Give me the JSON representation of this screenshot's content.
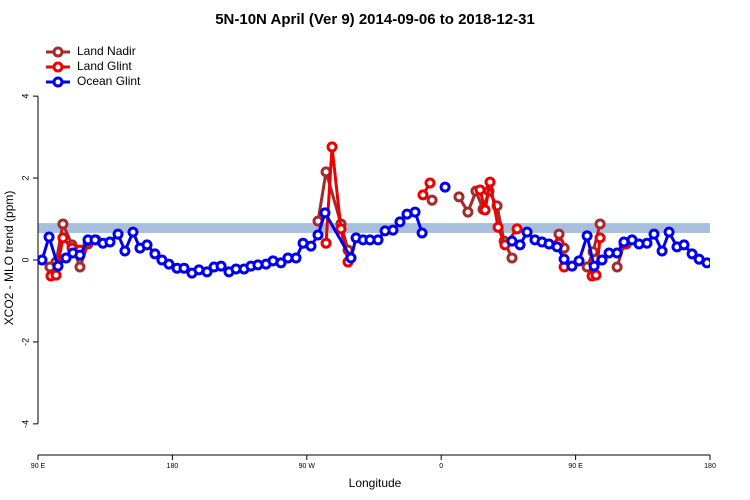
{
  "chart_data": {
    "type": "line",
    "title": "5N-10N April (Ver 9)   2014-09-06 to 2018-12-31",
    "xlabel": "Longitude",
    "ylabel": "XCO2 - MLO trend (ppm)",
    "xlim": [
      90,
      540
    ],
    "ylim": [
      -4.76,
      5.37
    ],
    "xticks": [
      {
        "value": 90,
        "label": "90 E"
      },
      180,
      {
        "value": 270,
        "label": "90 W"
      },
      {
        "value": 360,
        "label": "0"
      },
      {
        "value": 450,
        "label": "90 E"
      },
      {
        "value": 540,
        "label": "180"
      }
    ],
    "yticks": [
      -4,
      -2,
      0,
      2,
      4
    ],
    "reference_band": [
      0.66,
      0.9
    ],
    "reference_band_color": "#a7bfdc",
    "legend": "top-left",
    "series": [
      {
        "name": "Land Nadir",
        "color": "#a52a2a",
        "x": [
          98.0,
          102.1,
          106.7,
          112.8,
          118.1,
          123.5,
          null,
          277.5,
          282.9,
          292.9,
          297.6,
          null,
          353.9,
          null,
          371.9,
          377.9,
          383.3,
          388.0,
          392.0,
          397.4,
          402.1,
          407.4,
          null,
          438.9,
          442.3,
          null,
          457.7,
          461.7,
          466.4,
          null,
          477.8,
          482.4
        ],
        "values": [
          -0.17,
          -0.05,
          0.88,
          0.37,
          -0.17,
          0.39,
          null,
          0.95,
          2.15,
          0.88,
          0.24,
          null,
          1.46,
          null,
          1.54,
          1.17,
          1.68,
          1.24,
          1.68,
          1.32,
          0.46,
          0.05,
          null,
          0.63,
          0.29,
          null,
          -0.17,
          0.2,
          0.88,
          null,
          -0.17,
          0.39
        ]
      },
      {
        "name": "Land Glint",
        "color": "#ee0000",
        "x": [
          98.7,
          102.1,
          106.7,
          112.8,
          118.1,
          124.2,
          128.8,
          null,
          282.9,
          286.9,
          292.9,
          297.6,
          null,
          347.8,
          352.5,
          null,
          386.0,
          389.4,
          392.7,
          398.1,
          402.7,
          410.8,
          null,
          438.9,
          442.3,
          null,
          461.0,
          463.7,
          466.4,
          null,
          483.8
        ],
        "values": [
          -0.39,
          -0.37,
          0.54,
          0.29,
          0.24,
          0.46,
          0.49,
          null,
          0.41,
          2.76,
          0.76,
          -0.05,
          null,
          1.59,
          1.88,
          null,
          1.71,
          1.22,
          1.9,
          0.8,
          0.37,
          0.76,
          null,
          0.41,
          -0.17,
          null,
          -0.39,
          -0.37,
          0.54,
          null,
          0.39
        ]
      },
      {
        "name": "Ocean Glint",
        "color": "#0000ee",
        "x": [
          92.7,
          97.4,
          103.4,
          108.8,
          113.4,
          118.1,
          123.5,
          128.2,
          133.5,
          138.2,
          143.6,
          148.2,
          153.6,
          158.3,
          163.0,
          168.3,
          173.0,
          177.7,
          183.1,
          187.8,
          193.1,
          197.8,
          203.2,
          207.9,
          212.6,
          217.9,
          222.6,
          228.0,
          232.6,
          237.3,
          242.7,
          247.4,
          252.7,
          257.4,
          262.8,
          267.5,
          272.8,
          277.5,
          282.2,
          299.6,
          303.0,
          307.7,
          312.3,
          317.7,
          322.4,
          327.7,
          332.4,
          337.1,
          342.5,
          347.2,
          null,
          362.6,
          null,
          407.4,
          412.8,
          417.5,
          422.8,
          427.5,
          432.2,
          437.6,
          442.3,
          447.6,
          452.3,
          457.7,
          462.4,
          467.7,
          472.4,
          477.8,
          482.4,
          487.8,
          492.5,
          497.8,
          502.5,
          507.9,
          512.6,
          517.9,
          522.6,
          528.0,
          532.7,
          538.0
        ],
        "values": [
          0.0,
          0.56,
          -0.15,
          0.05,
          0.17,
          0.12,
          0.49,
          0.49,
          0.41,
          0.44,
          0.63,
          0.22,
          0.68,
          0.29,
          0.37,
          0.15,
          0.0,
          -0.1,
          -0.2,
          -0.2,
          -0.32,
          -0.24,
          -0.29,
          -0.17,
          -0.15,
          -0.29,
          -0.22,
          -0.22,
          -0.15,
          -0.12,
          -0.1,
          -0.02,
          -0.07,
          0.05,
          0.05,
          0.41,
          0.34,
          0.61,
          1.15,
          0.05,
          0.54,
          0.49,
          0.49,
          0.49,
          0.71,
          0.73,
          0.93,
          1.12,
          1.17,
          0.66,
          null,
          1.78,
          null,
          0.46,
          0.37,
          0.68,
          0.49,
          0.44,
          0.39,
          0.32,
          0.02,
          -0.15,
          -0.02,
          0.59,
          -0.15,
          0.0,
          0.17,
          0.17,
          0.44,
          0.49,
          0.39,
          0.41,
          0.63,
          0.22,
          0.68,
          0.32,
          0.37,
          0.15,
          0.02,
          -0.07
        ]
      }
    ]
  }
}
